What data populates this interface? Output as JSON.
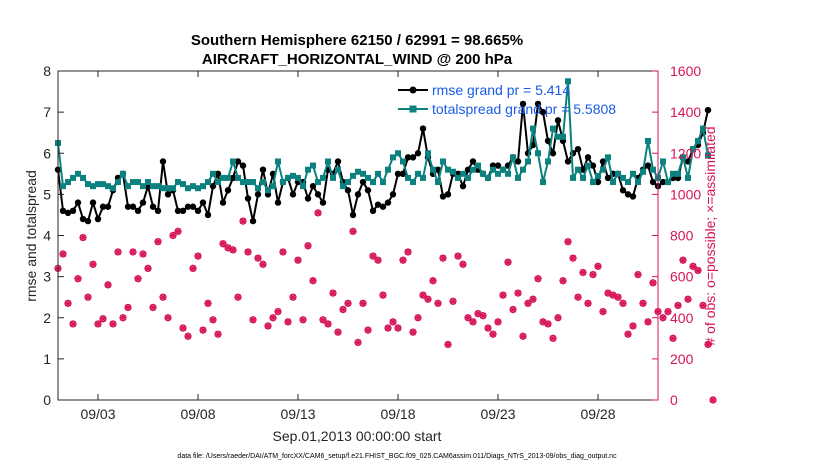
{
  "chart_data": {
    "type": "line",
    "title_line1": "Southern Hemisphere 62150 / 62991 = 98.665%",
    "title_line2": "AIRCRAFT_HORIZONTAL_WIND @ 200 hPa",
    "xlabel": "Sep.01,2013 00:00:00 start",
    "ylabel_left": "rmse and totalspread",
    "ylabel_right": "# of obs: o=possible; ×=assimilated",
    "xlim": [
      1.0,
      31.0
    ],
    "ylim_left": [
      0,
      8
    ],
    "ylim_right": [
      0,
      1600
    ],
    "x_ticks": [
      {
        "x": 3,
        "label": "09/03"
      },
      {
        "x": 8,
        "label": "09/08"
      },
      {
        "x": 13,
        "label": "09/13"
      },
      {
        "x": 18,
        "label": "09/18"
      },
      {
        "x": 23,
        "label": "09/23"
      },
      {
        "x": 28,
        "label": "09/28"
      }
    ],
    "y_ticks_left": [
      "0",
      "1",
      "2",
      "3",
      "4",
      "5",
      "6",
      "7",
      "8"
    ],
    "y_ticks_right": [
      "0",
      "200",
      "400",
      "600",
      "800",
      "1000",
      "1200",
      "1400",
      "1600"
    ],
    "colors": {
      "rmse": "#000000",
      "totalspread": "#0c8280",
      "obs": "#d6145a",
      "legend_text": "#1a5ce6",
      "axis": "#262626"
    },
    "series": [
      {
        "name": "rmse",
        "legend": "rmse grand pr = 5.414",
        "x_start": 1.0,
        "x_step": 0.25,
        "values": [
          5.6,
          4.6,
          4.55,
          4.6,
          4.8,
          4.4,
          4.35,
          4.8,
          4.4,
          4.7,
          4.7,
          5.1,
          5.4,
          5.5,
          4.7,
          4.7,
          4.6,
          4.8,
          5.2,
          4.7,
          4.6,
          5.8,
          5.0,
          5.1,
          4.6,
          4.6,
          4.7,
          4.7,
          4.6,
          4.8,
          4.5,
          5.2,
          5.5,
          4.8,
          5.1,
          5.4,
          5.8,
          5.7,
          4.9,
          4.35,
          5.0,
          5.6,
          5.0,
          5.5,
          4.8,
          5.3,
          5.4,
          5.0,
          5.3,
          5.3,
          4.9,
          5.2,
          5.0,
          4.8,
          5.6,
          5.5,
          5.8,
          5.3,
          5.1,
          4.5,
          5.0,
          5.3,
          5.1,
          4.6,
          4.75,
          4.7,
          4.8,
          5.0,
          5.5,
          5.5,
          5.9,
          5.9,
          6.0,
          6.6,
          5.9,
          5.5,
          5.6,
          4.95,
          5.0,
          5.5,
          5.5,
          5.2,
          5.6,
          5.8,
          5.6,
          5.5,
          5.4,
          5.7,
          5.7,
          5.6,
          5.7,
          5.9,
          5.8,
          7.2,
          6.0,
          6.2,
          7.2,
          7.0,
          6.3,
          6.0,
          6.8,
          6.3,
          5.8,
          6.0,
          6.1,
          5.6,
          5.9,
          5.7,
          5.3,
          5.8,
          5.4,
          5.5,
          5.5,
          5.1,
          5.0,
          4.95,
          5.4,
          5.6,
          5.7,
          5.3,
          5.2,
          5.3,
          5.3,
          5.4,
          5.4,
          5.9,
          5.8,
          6.1,
          6.2,
          6.5,
          7.05
        ]
      },
      {
        "name": "totalspread",
        "legend": "totalspread grand pr = 5.5808",
        "x_start": 1.0,
        "x_step": 0.25,
        "values": [
          6.25,
          5.2,
          5.3,
          5.4,
          5.5,
          5.4,
          5.25,
          5.2,
          5.25,
          5.25,
          5.2,
          5.15,
          5.3,
          5.5,
          5.2,
          5.3,
          5.3,
          5.2,
          5.3,
          5.2,
          5.2,
          5.15,
          5.15,
          5.15,
          5.3,
          5.25,
          5.15,
          5.2,
          5.15,
          5.2,
          5.3,
          5.5,
          5.3,
          5.4,
          5.4,
          5.8,
          5.4,
          5.3,
          5.3,
          5.3,
          5.15,
          5.3,
          5.1,
          5.2,
          5.8,
          5.3,
          5.4,
          5.45,
          5.4,
          5.2,
          5.6,
          5.7,
          5.3,
          5.4,
          5.8,
          5.4,
          5.6,
          5.2,
          5.3,
          5.45,
          5.55,
          5.5,
          5.4,
          5.3,
          5.5,
          5.3,
          5.6,
          5.9,
          6.0,
          5.8,
          5.4,
          5.3,
          5.5,
          5.4,
          6.0,
          5.6,
          5.3,
          5.8,
          5.6,
          5.55,
          5.4,
          5.5,
          5.4,
          5.6,
          5.7,
          5.5,
          5.4,
          5.6,
          5.5,
          5.6,
          5.5,
          5.9,
          5.4,
          5.6,
          5.8,
          6.6,
          6.0,
          5.3,
          5.8,
          6.6,
          6.4,
          6.4,
          7.75,
          5.4,
          5.6,
          5.4,
          5.7,
          5.3,
          5.45,
          5.6,
          5.9,
          5.3,
          5.5,
          5.4,
          5.3,
          5.5,
          5.3,
          5.55,
          6.3,
          5.6,
          5.4,
          5.8,
          5.3,
          5.5,
          5.5,
          5.9,
          5.4,
          6.1,
          6.3,
          6.6,
          5.95
        ]
      }
    ],
    "obs_counts": {
      "name": "# of obs",
      "x_start": 1.0,
      "x_step": 0.25,
      "assimilated": [
        640,
        710,
        470,
        370,
        590,
        790,
        500,
        660,
        370,
        395,
        560,
        370,
        720,
        400,
        450,
        720,
        590,
        710,
        640,
        450,
        770,
        500,
        400,
        800,
        820,
        350,
        310,
        640,
        700,
        340,
        470,
        390,
        320,
        760,
        740,
        730,
        500,
        870,
        720,
        390,
        690,
        660,
        360,
        400,
        430,
        720,
        380,
        500,
        680,
        390,
        750,
        580,
        910,
        390,
        370,
        520,
        330,
        440,
        470,
        820,
        280,
        470,
        340,
        700,
        680,
        510,
        350,
        380,
        350,
        680,
        720,
        330,
        400,
        510,
        490,
        580,
        470,
        690,
        270,
        480,
        700,
        660,
        400,
        380,
        420,
        410,
        350,
        320,
        380,
        510,
        670,
        440,
        520,
        310,
        470,
        490,
        590,
        380,
        370,
        300,
        400,
        580,
        770,
        690,
        500,
        620,
        470,
        610,
        650,
        430,
        520,
        510,
        500,
        470,
        320,
        360,
        610,
        470,
        380,
        570,
        430,
        400,
        430,
        300,
        460,
        680,
        490,
        650,
        630,
        460,
        270,
        0
      ]
    }
  },
  "footer": "data file: /Users/raeder/DAI/ATM_forcXX/CAM6_setup/f.e21.FHIST_BGC.f09_025.CAM6assim.011/Diags_NTrS_2013-09/obs_diag_output.nc"
}
